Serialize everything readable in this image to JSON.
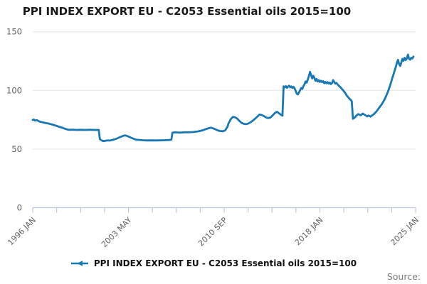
{
  "header": {
    "title": "PPI INDEX EXPORT EU - C2053 Essential oils 2015=100"
  },
  "legend": {
    "label": "PPI INDEX EXPORT EU - C2053 Essential oils 2015=100"
  },
  "footer": {
    "source_label": "Source:"
  },
  "colors": {
    "line": "#1878b4",
    "grid": "#e3e3e3",
    "axis": "#b9c7e2",
    "tick_text": "#5f5f5f",
    "title_text": "#1a1a1a",
    "source_text": "#7a7a7a"
  },
  "chart_data": {
    "type": "line",
    "title": "PPI INDEX EXPORT EU - C2053 Essential oils 2015=100",
    "legend_position": "bottom",
    "grid": "horizontal-only",
    "x_axis": {
      "start": "1996 JAN",
      "end": "2025 JAN",
      "months_span": 348,
      "total_ticks": 17,
      "labeled_every": 4,
      "label_ticks": [
        "1996 JAN",
        "2003 MAY",
        "2010 SEP",
        "2018 JAN",
        "2025 JAN"
      ]
    },
    "y_axis": {
      "min": 0,
      "max": 150,
      "ticks": [
        "0",
        "50",
        "100",
        "150"
      ]
    },
    "series": [
      {
        "name": "PPI INDEX EXPORT EU - C2053 Essential oils 2015=100",
        "points_format": "[months_since_1996_JAN, index_value]",
        "points": [
          [
            0,
            74.8
          ],
          [
            1,
            75.2
          ],
          [
            2,
            74.3
          ],
          [
            4,
            74.6
          ],
          [
            6,
            73.4
          ],
          [
            8,
            73.0
          ],
          [
            10,
            72.6
          ],
          [
            12,
            72.1
          ],
          [
            14,
            71.8
          ],
          [
            16,
            71.3
          ],
          [
            18,
            70.8
          ],
          [
            20,
            70.2
          ],
          [
            22,
            69.6
          ],
          [
            24,
            69.0
          ],
          [
            26,
            68.4
          ],
          [
            28,
            67.8
          ],
          [
            30,
            67.1
          ],
          [
            32,
            66.5
          ],
          [
            34,
            66.4
          ],
          [
            36,
            66.5
          ],
          [
            40,
            66.3
          ],
          [
            44,
            66.4
          ],
          [
            48,
            66.3
          ],
          [
            52,
            66.4
          ],
          [
            56,
            66.3
          ],
          [
            60,
            66.3
          ],
          [
            61,
            58.4
          ],
          [
            62,
            57.8
          ],
          [
            63,
            57.2
          ],
          [
            64,
            56.8
          ],
          [
            66,
            57.0
          ],
          [
            68,
            57.4
          ],
          [
            70,
            57.2
          ],
          [
            72,
            57.6
          ],
          [
            74,
            58.2
          ],
          [
            76,
            58.8
          ],
          [
            78,
            59.6
          ],
          [
            80,
            60.4
          ],
          [
            82,
            61.2
          ],
          [
            84,
            61.6
          ],
          [
            86,
            61.0
          ],
          [
            88,
            60.2
          ],
          [
            90,
            59.4
          ],
          [
            92,
            58.6
          ],
          [
            94,
            58.0
          ],
          [
            96,
            57.8
          ],
          [
            100,
            57.5
          ],
          [
            104,
            57.3
          ],
          [
            108,
            57.4
          ],
          [
            112,
            57.3
          ],
          [
            116,
            57.4
          ],
          [
            120,
            57.5
          ],
          [
            124,
            57.7
          ],
          [
            126,
            58.0
          ],
          [
            127,
            64.0
          ],
          [
            130,
            64.2
          ],
          [
            134,
            64.0
          ],
          [
            138,
            64.3
          ],
          [
            142,
            64.2
          ],
          [
            146,
            64.5
          ],
          [
            150,
            65.0
          ],
          [
            154,
            65.8
          ],
          [
            157,
            66.8
          ],
          [
            160,
            67.8
          ],
          [
            162,
            68.2
          ],
          [
            164,
            67.6
          ],
          [
            166,
            66.8
          ],
          [
            168,
            66.0
          ],
          [
            170,
            65.4
          ],
          [
            173,
            65.2
          ],
          [
            175,
            66.0
          ],
          [
            177,
            69.0
          ],
          [
            178,
            72.0
          ],
          [
            180,
            75.5
          ],
          [
            182,
            77.4
          ],
          [
            184,
            77.0
          ],
          [
            186,
            75.8
          ],
          [
            188,
            73.8
          ],
          [
            190,
            72.2
          ],
          [
            192,
            71.4
          ],
          [
            194,
            71.2
          ],
          [
            196,
            71.8
          ],
          [
            198,
            72.8
          ],
          [
            200,
            74.2
          ],
          [
            202,
            75.8
          ],
          [
            204,
            77.4
          ],
          [
            206,
            79.4
          ],
          [
            208,
            79.0
          ],
          [
            210,
            78.2
          ],
          [
            212,
            77.0
          ],
          [
            214,
            76.4
          ],
          [
            216,
            76.8
          ],
          [
            218,
            78.6
          ],
          [
            220,
            80.6
          ],
          [
            222,
            81.8
          ],
          [
            224,
            80.4
          ],
          [
            226,
            79.0
          ],
          [
            227,
            78.4
          ],
          [
            228,
            103.4
          ],
          [
            229,
            102.6
          ],
          [
            230,
            103.6
          ],
          [
            231,
            102.2
          ],
          [
            232,
            103.2
          ],
          [
            233,
            104.0
          ],
          [
            234,
            102.6
          ],
          [
            235,
            103.4
          ],
          [
            236,
            102.2
          ],
          [
            237,
            103.0
          ],
          [
            238,
            101.8
          ],
          [
            239,
            99.6
          ],
          [
            240,
            97.2
          ],
          [
            241,
            96.6
          ],
          [
            242,
            98.2
          ],
          [
            243,
            100.2
          ],
          [
            244,
            102.0
          ],
          [
            245,
            101.2
          ],
          [
            246,
            103.6
          ],
          [
            247,
            105.2
          ],
          [
            248,
            107.6
          ],
          [
            249,
            106.6
          ],
          [
            250,
            109.2
          ],
          [
            251,
            112.2
          ],
          [
            252,
            115.8
          ],
          [
            253,
            113.2
          ],
          [
            254,
            110.2
          ],
          [
            255,
            112.4
          ],
          [
            256,
            110.6
          ],
          [
            257,
            108.2
          ],
          [
            258,
            109.6
          ],
          [
            259,
            107.6
          ],
          [
            260,
            108.8
          ],
          [
            261,
            107.2
          ],
          [
            262,
            108.2
          ],
          [
            263,
            107.0
          ],
          [
            264,
            107.8
          ],
          [
            265,
            106.2
          ],
          [
            266,
            107.2
          ],
          [
            267,
            106.0
          ],
          [
            268,
            107.0
          ],
          [
            269,
            105.8
          ],
          [
            270,
            106.6
          ],
          [
            271,
            105.4
          ],
          [
            272,
            106.2
          ],
          [
            273,
            108.8
          ],
          [
            274,
            107.2
          ],
          [
            275,
            105.8
          ],
          [
            276,
            106.4
          ],
          [
            277,
            105.2
          ],
          [
            278,
            104.2
          ],
          [
            279,
            103.2
          ],
          [
            280,
            102.4
          ],
          [
            281,
            101.2
          ],
          [
            282,
            100.2
          ],
          [
            283,
            99.0
          ],
          [
            284,
            97.8
          ],
          [
            285,
            96.2
          ],
          [
            286,
            95.0
          ],
          [
            287,
            93.8
          ],
          [
            288,
            92.8
          ],
          [
            289,
            91.8
          ],
          [
            290,
            90.8
          ],
          [
            291,
            75.8
          ],
          [
            292,
            76.4
          ],
          [
            293,
            77.2
          ],
          [
            294,
            78.4
          ],
          [
            295,
            79.2
          ],
          [
            296,
            79.8
          ],
          [
            297,
            79.2
          ],
          [
            298,
            78.8
          ],
          [
            299,
            79.4
          ],
          [
            300,
            80.2
          ],
          [
            301,
            79.6
          ],
          [
            302,
            79.0
          ],
          [
            303,
            78.4
          ],
          [
            304,
            77.8
          ],
          [
            305,
            78.6
          ],
          [
            306,
            78.2
          ],
          [
            307,
            77.6
          ],
          [
            308,
            78.4
          ],
          [
            309,
            79.0
          ],
          [
            310,
            79.8
          ],
          [
            311,
            80.6
          ],
          [
            312,
            81.6
          ],
          [
            313,
            82.8
          ],
          [
            314,
            84.0
          ],
          [
            315,
            85.4
          ],
          [
            316,
            86.6
          ],
          [
            317,
            87.8
          ],
          [
            318,
            89.4
          ],
          [
            319,
            91.0
          ],
          [
            320,
            92.8
          ],
          [
            321,
            94.8
          ],
          [
            322,
            97.0
          ],
          [
            323,
            99.4
          ],
          [
            324,
            102.0
          ],
          [
            325,
            104.8
          ],
          [
            326,
            107.8
          ],
          [
            327,
            111.0
          ],
          [
            328,
            114.0
          ],
          [
            329,
            117.0
          ],
          [
            330,
            120.0
          ],
          [
            331,
            123.5
          ],
          [
            332,
            126.0
          ],
          [
            333,
            122.5
          ],
          [
            334,
            120.8
          ],
          [
            335,
            123.8
          ],
          [
            336,
            126.8
          ],
          [
            337,
            125.2
          ],
          [
            338,
            127.8
          ],
          [
            339,
            125.8
          ],
          [
            340,
            127.2
          ],
          [
            341,
            130.5
          ],
          [
            342,
            127.0
          ],
          [
            343,
            126.2
          ],
          [
            344,
            127.8
          ],
          [
            345,
            127.2
          ],
          [
            346,
            128.8
          ]
        ]
      }
    ]
  }
}
